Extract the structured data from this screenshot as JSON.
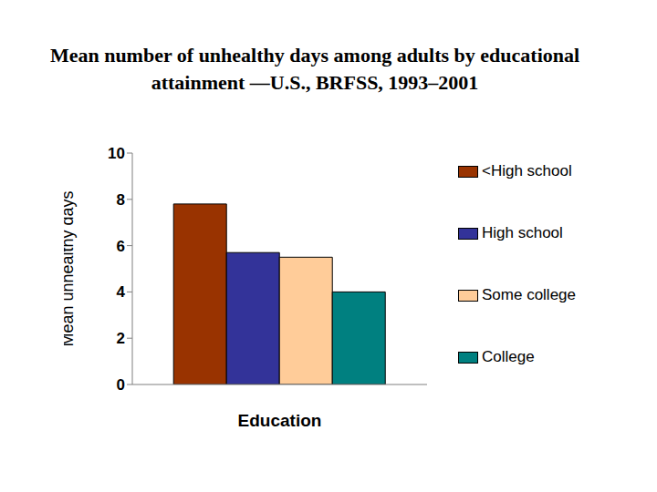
{
  "chart_data": {
    "type": "bar",
    "title": "Mean number of unhealthy days among adults by educational attainment —U.S., BRFSS, 1993–2001",
    "x_label": "Education",
    "y_label": "Mean unhealthy days",
    "categories": [
      null
    ],
    "series": [
      {
        "name": "<High school",
        "color": "#993300",
        "values": [
          7.8
        ]
      },
      {
        "name": "High school",
        "color": "#333399",
        "values": [
          5.7
        ]
      },
      {
        "name": "Some college",
        "color": "#ffcc99",
        "values": [
          5.5
        ]
      },
      {
        "name": "College",
        "color": "#008080",
        "values": [
          4.0
        ]
      }
    ],
    "ylim": [
      0,
      10
    ],
    "yticks": [
      0,
      2,
      4,
      6,
      8,
      10
    ],
    "grid": false,
    "legend": "right"
  }
}
